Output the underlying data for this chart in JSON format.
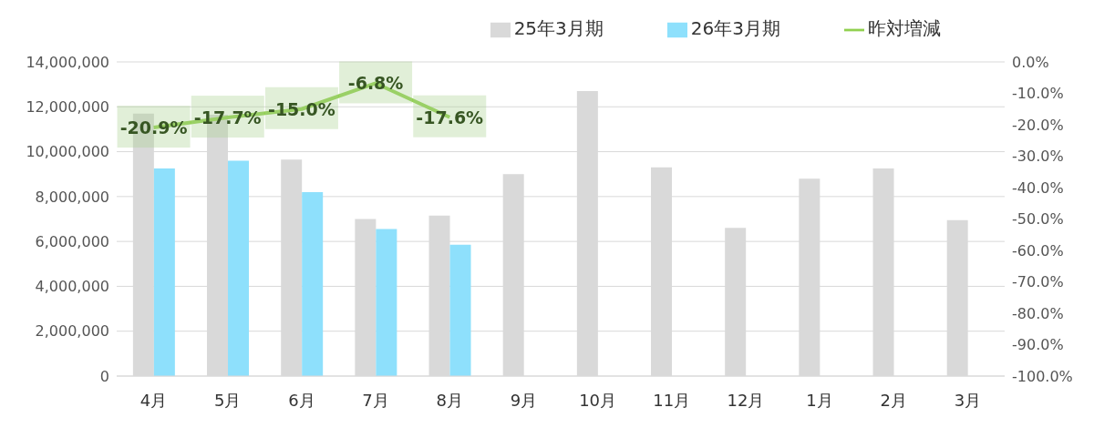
{
  "chart_data": {
    "type": "bar",
    "categories": [
      "4月",
      "5月",
      "6月",
      "7月",
      "8月",
      "9月",
      "10月",
      "11月",
      "12月",
      "1月",
      "2月",
      "3月"
    ],
    "series": [
      {
        "name": "25年3月期",
        "color": "#d9d9d9",
        "values": [
          11700000,
          11650000,
          9650000,
          7000000,
          7150000,
          9000000,
          12700000,
          9300000,
          6600000,
          8800000,
          9250000,
          6950000
        ]
      },
      {
        "name": "26年3月期",
        "color": "#8ee0fc",
        "values": [
          9250000,
          9600000,
          8200000,
          6550000,
          5850000,
          null,
          null,
          null,
          null,
          null,
          null,
          null
        ]
      },
      {
        "name": "昨対増減",
        "type": "line",
        "axis": "y2",
        "color": "#92d050",
        "values": [
          -20.9,
          -17.7,
          -15.0,
          -6.8,
          -17.6,
          null,
          null,
          null,
          null,
          null,
          null,
          null
        ],
        "value_labels": [
          "-20.9%",
          "-17.7%",
          "-15.0%",
          "-6.8%",
          "-17.6%",
          null,
          null,
          null,
          null,
          null,
          null,
          null
        ]
      }
    ],
    "ylim": [
      0,
      14000000
    ],
    "yticks": [
      0,
      {
        "value": 2000000,
        "label": "2,000,000"
      },
      {
        "value": 4000000,
        "label": "4,000,000"
      },
      {
        "value": 6000000,
        "label": "6,000,000"
      },
      {
        "value": 8000000,
        "label": "8,000,000"
      },
      {
        "value": 10000000,
        "label": "10,000,000"
      },
      {
        "value": 12000000,
        "label": "12,000,000"
      },
      {
        "value": 14000000,
        "label": "14,000,000"
      }
    ],
    "y2lim": [
      -100,
      0
    ],
    "y2ticks": [
      {
        "value": 0,
        "label": "0.0%"
      },
      {
        "value": -10,
        "label": "-10.0%"
      },
      {
        "value": -20,
        "label": "-20.0%"
      },
      {
        "value": -30,
        "label": "-30.0%"
      },
      {
        "value": -40,
        "label": "-40.0%"
      },
      {
        "value": -50,
        "label": "-50.0%"
      },
      {
        "value": -60,
        "label": "-60.0%"
      },
      {
        "value": -70,
        "label": "-70.0%"
      },
      {
        "value": -80,
        "label": "-80.0%"
      },
      {
        "value": -90,
        "label": "-90.0%"
      },
      {
        "value": -100,
        "label": "-100.0%"
      }
    ],
    "grid": "y",
    "legend": "top right"
  }
}
